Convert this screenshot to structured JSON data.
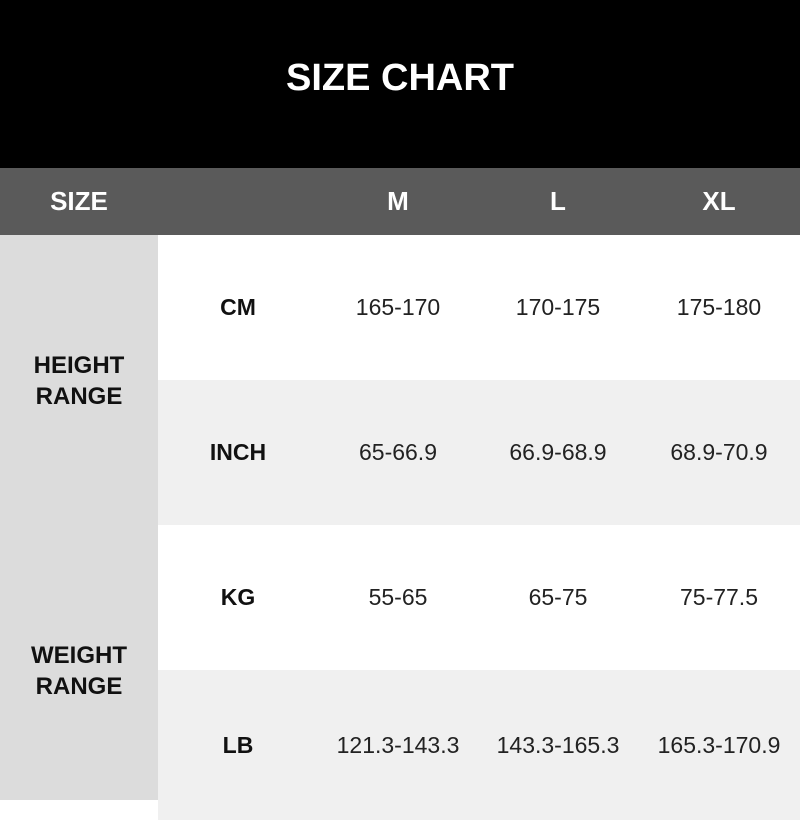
{
  "title": "SIZE CHART",
  "header": {
    "size_label": "SIZE",
    "sizes": [
      "M",
      "L",
      "XL"
    ]
  },
  "groups": [
    {
      "label_line1": "HEIGHT",
      "label_line2": "RANGE"
    },
    {
      "label_line1": "WEIGHT",
      "label_line2": "RANGE"
    }
  ],
  "rows": [
    {
      "unit": "CM",
      "values": [
        "165-170",
        "170-175",
        "175-180"
      ]
    },
    {
      "unit": "INCH",
      "values": [
        "65-66.9",
        "66.9-68.9",
        "68.9-70.9"
      ]
    },
    {
      "unit": "KG",
      "values": [
        "55-65",
        "65-75",
        "75-77.5"
      ]
    },
    {
      "unit": "LB",
      "values": [
        "121.3-143.3",
        "143.3-165.3",
        "165.3-170.9"
      ]
    }
  ],
  "colors": {
    "title_bg": "#000000",
    "header_bg": "#5a5a5a",
    "left_col_bg": "#dcdcdc",
    "row_alt_bg": "#f0f0f0"
  }
}
